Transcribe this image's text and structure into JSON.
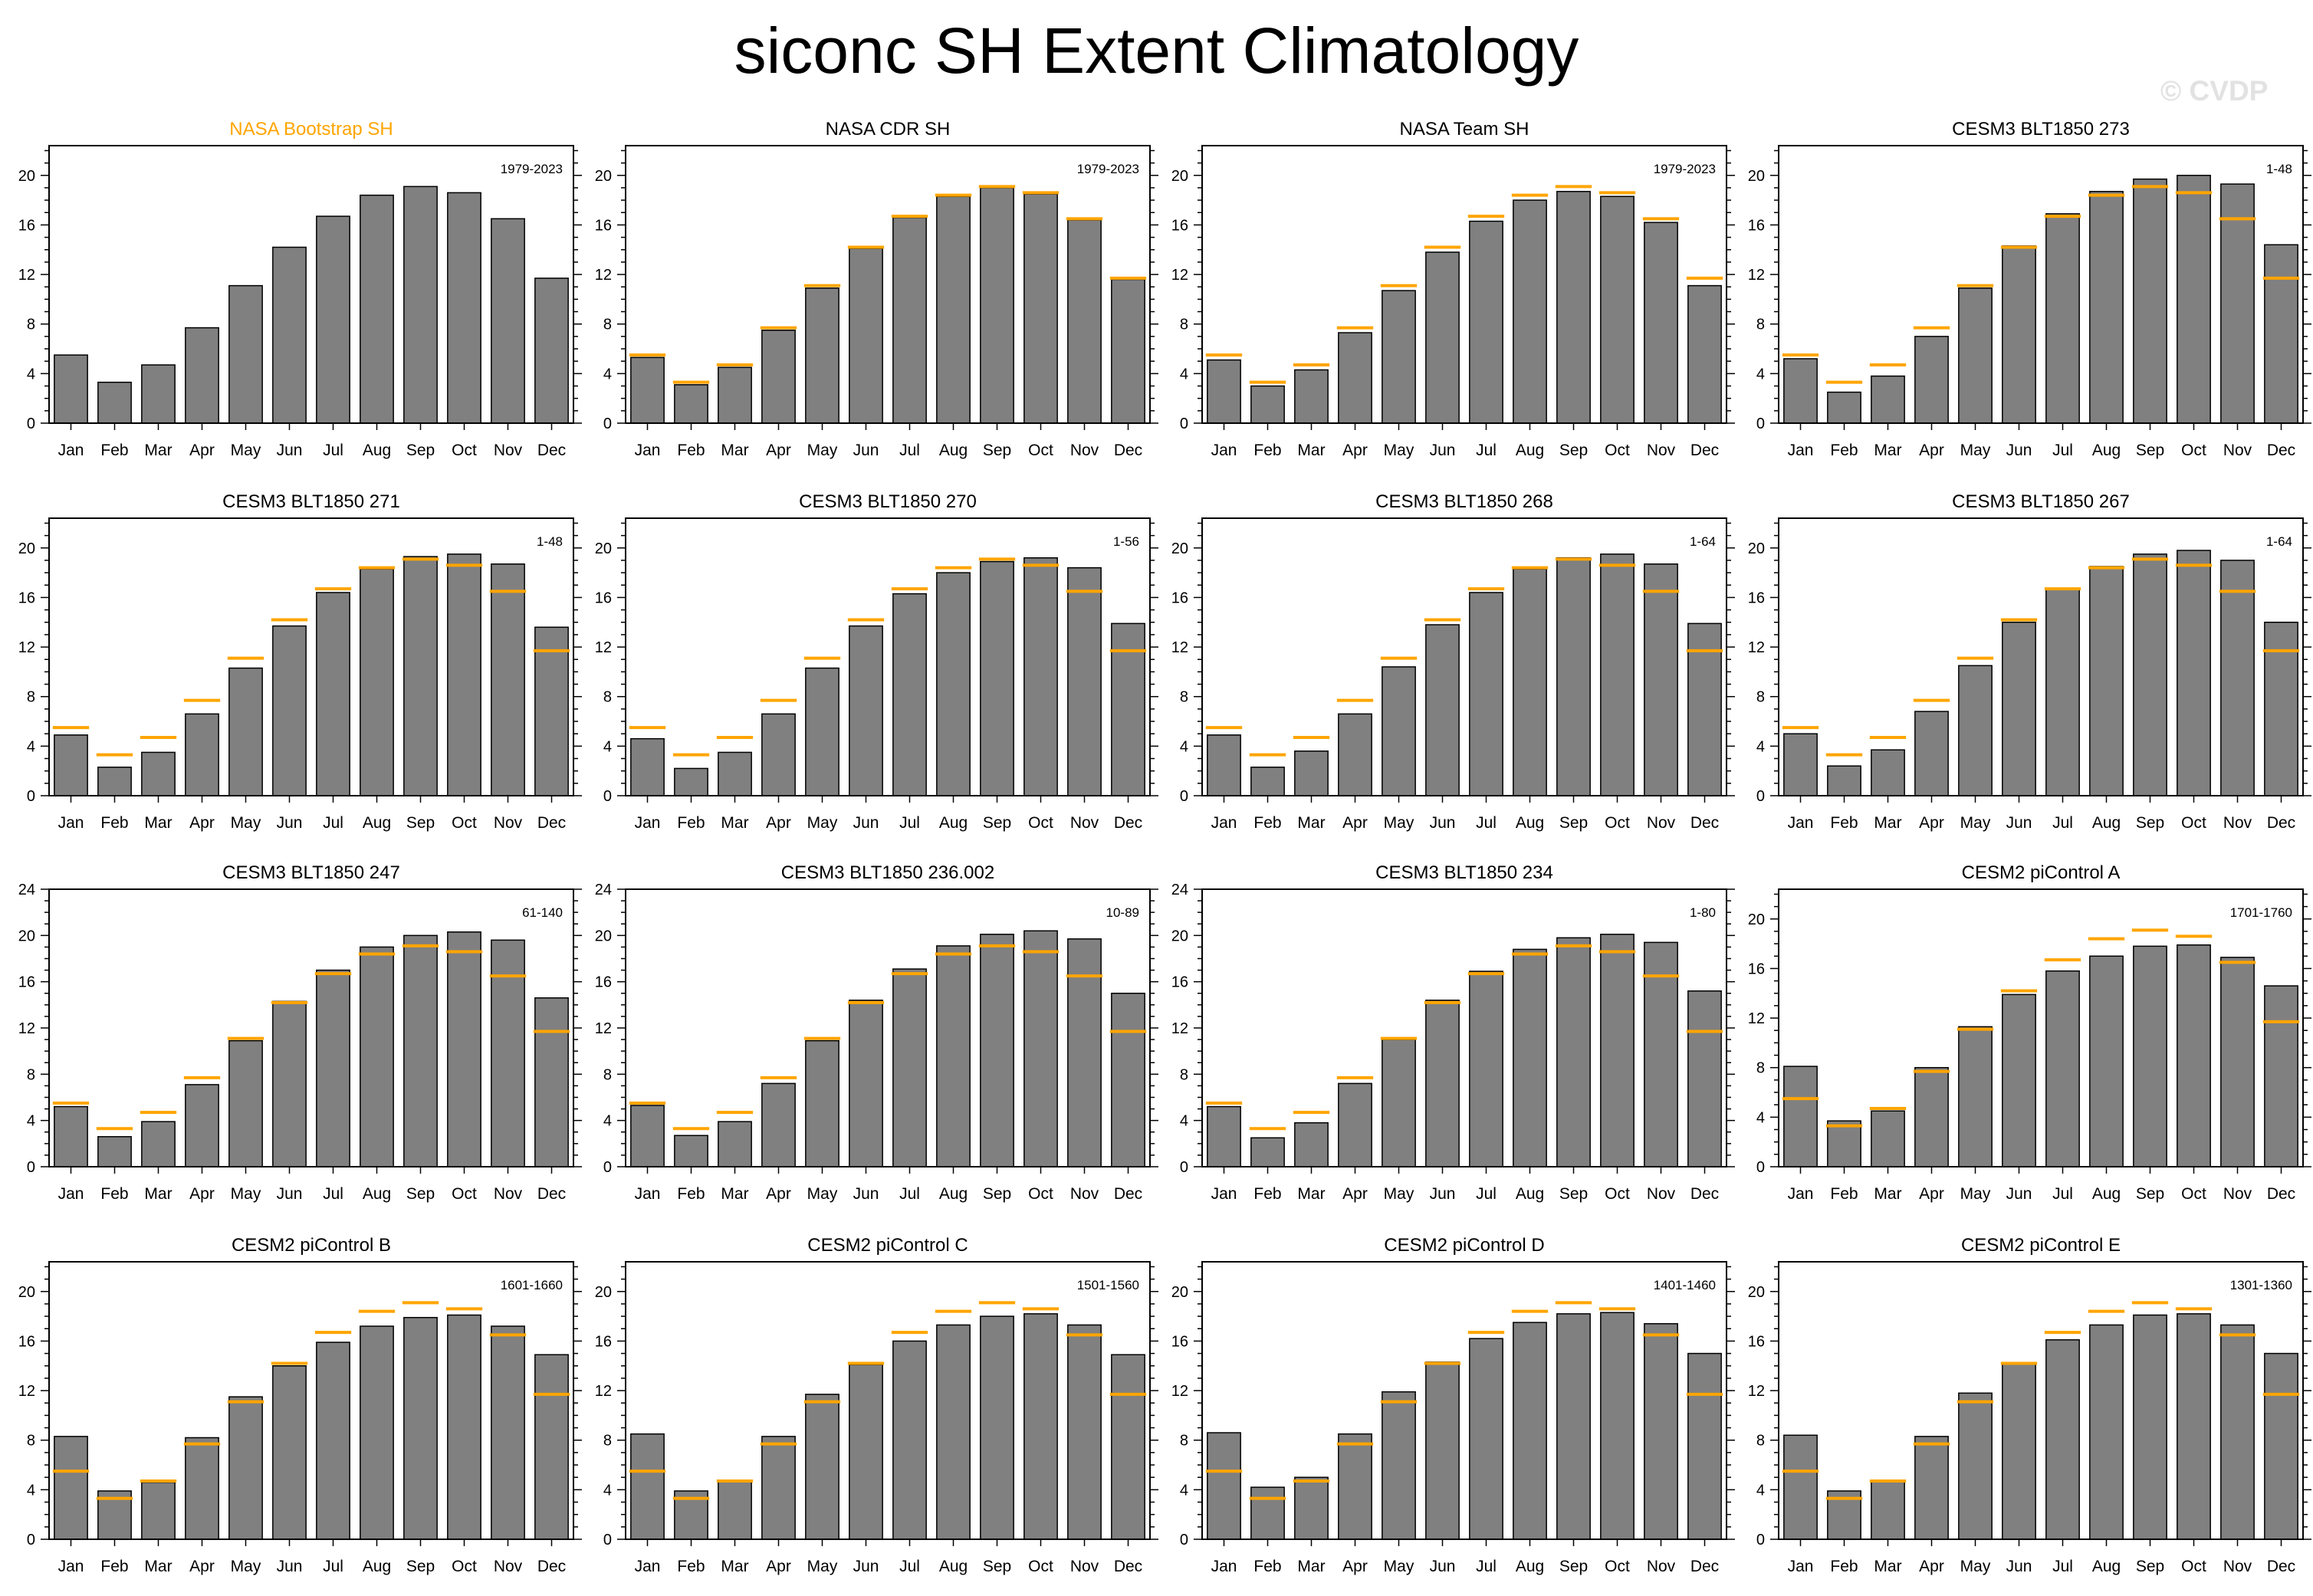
{
  "title": "siconc SH Extent Climatology",
  "watermark": "© CVDP",
  "colors": {
    "bar_fill": "#808080",
    "bar_edge": "#000000",
    "obs_line": "#ffa500",
    "highlight_title": "#ffa500"
  },
  "chart_data": [
    {
      "type": "bar",
      "title": "NASA Bootstrap SH",
      "title_highlight": true,
      "period": "1979-2023",
      "categories": [
        "Jan",
        "Feb",
        "Mar",
        "Apr",
        "May",
        "Jun",
        "Jul",
        "Aug",
        "Sep",
        "Oct",
        "Nov",
        "Dec"
      ],
      "values": [
        5.5,
        3.3,
        4.7,
        7.7,
        11.1,
        14.2,
        16.7,
        18.4,
        19.1,
        18.6,
        16.5,
        11.7
      ],
      "ref_values": [],
      "ylim": [
        0,
        22.4
      ],
      "yticks": [
        0,
        4,
        8,
        12,
        16,
        20
      ]
    },
    {
      "type": "bar",
      "title": "NASA CDR SH",
      "period": "1979-2023",
      "categories": [
        "Jan",
        "Feb",
        "Mar",
        "Apr",
        "May",
        "Jun",
        "Jul",
        "Aug",
        "Sep",
        "Oct",
        "Nov",
        "Dec"
      ],
      "values": [
        5.3,
        3.1,
        4.5,
        7.5,
        10.9,
        14.1,
        16.6,
        18.3,
        19.0,
        18.5,
        16.4,
        11.6
      ],
      "ref_values": [
        5.5,
        3.3,
        4.7,
        7.7,
        11.1,
        14.2,
        16.7,
        18.4,
        19.1,
        18.6,
        16.5,
        11.7
      ],
      "ylim": [
        0,
        22.4
      ],
      "yticks": [
        0,
        4,
        8,
        12,
        16,
        20
      ]
    },
    {
      "type": "bar",
      "title": "NASA Team SH",
      "period": "1979-2023",
      "categories": [
        "Jan",
        "Feb",
        "Mar",
        "Apr",
        "May",
        "Jun",
        "Jul",
        "Aug",
        "Sep",
        "Oct",
        "Nov",
        "Dec"
      ],
      "values": [
        5.1,
        3.0,
        4.3,
        7.3,
        10.7,
        13.8,
        16.3,
        18.0,
        18.7,
        18.3,
        16.2,
        11.1
      ],
      "ref_values": [
        5.5,
        3.3,
        4.7,
        7.7,
        11.1,
        14.2,
        16.7,
        18.4,
        19.1,
        18.6,
        16.5,
        11.7
      ],
      "ylim": [
        0,
        22.4
      ],
      "yticks": [
        0,
        4,
        8,
        12,
        16,
        20
      ]
    },
    {
      "type": "bar",
      "title": "CESM3 BLT1850 273",
      "period": "1-48",
      "categories": [
        "Jan",
        "Feb",
        "Mar",
        "Apr",
        "May",
        "Jun",
        "Jul",
        "Aug",
        "Sep",
        "Oct",
        "Nov",
        "Dec"
      ],
      "values": [
        5.2,
        2.5,
        3.8,
        7.0,
        10.9,
        14.3,
        16.9,
        18.7,
        19.7,
        20.0,
        19.3,
        14.4
      ],
      "ref_values": [
        5.5,
        3.3,
        4.7,
        7.7,
        11.1,
        14.2,
        16.7,
        18.4,
        19.1,
        18.6,
        16.5,
        11.7
      ],
      "ylim": [
        0,
        22.4
      ],
      "yticks": [
        0,
        4,
        8,
        12,
        16,
        20
      ]
    },
    {
      "type": "bar",
      "title": "CESM3 BLT1850 271",
      "period": "1-48",
      "categories": [
        "Jan",
        "Feb",
        "Mar",
        "Apr",
        "May",
        "Jun",
        "Jul",
        "Aug",
        "Sep",
        "Oct",
        "Nov",
        "Dec"
      ],
      "values": [
        4.9,
        2.3,
        3.5,
        6.6,
        10.3,
        13.7,
        16.4,
        18.3,
        19.3,
        19.5,
        18.7,
        13.6
      ],
      "ref_values": [
        5.5,
        3.3,
        4.7,
        7.7,
        11.1,
        14.2,
        16.7,
        18.4,
        19.1,
        18.6,
        16.5,
        11.7
      ],
      "ylim": [
        0,
        22.4
      ],
      "yticks": [
        0,
        4,
        8,
        12,
        16,
        20
      ]
    },
    {
      "type": "bar",
      "title": "CESM3 BLT1850 270",
      "period": "1-56",
      "categories": [
        "Jan",
        "Feb",
        "Mar",
        "Apr",
        "May",
        "Jun",
        "Jul",
        "Aug",
        "Sep",
        "Oct",
        "Nov",
        "Dec"
      ],
      "values": [
        4.6,
        2.2,
        3.5,
        6.6,
        10.3,
        13.7,
        16.3,
        18.0,
        18.9,
        19.2,
        18.4,
        13.9
      ],
      "ref_values": [
        5.5,
        3.3,
        4.7,
        7.7,
        11.1,
        14.2,
        16.7,
        18.4,
        19.1,
        18.6,
        16.5,
        11.7
      ],
      "ylim": [
        0,
        22.4
      ],
      "yticks": [
        0,
        4,
        8,
        12,
        16,
        20
      ]
    },
    {
      "type": "bar",
      "title": "CESM3 BLT1850 268",
      "period": "1-64",
      "categories": [
        "Jan",
        "Feb",
        "Mar",
        "Apr",
        "May",
        "Jun",
        "Jul",
        "Aug",
        "Sep",
        "Oct",
        "Nov",
        "Dec"
      ],
      "values": [
        4.9,
        2.3,
        3.6,
        6.6,
        10.4,
        13.8,
        16.4,
        18.3,
        19.2,
        19.5,
        18.7,
        13.9
      ],
      "ref_values": [
        5.5,
        3.3,
        4.7,
        7.7,
        11.1,
        14.2,
        16.7,
        18.4,
        19.1,
        18.6,
        16.5,
        11.7
      ],
      "ylim": [
        0,
        22.4
      ],
      "yticks": [
        0,
        4,
        8,
        12,
        16,
        20
      ]
    },
    {
      "type": "bar",
      "title": "CESM3 BLT1850 267",
      "period": "1-64",
      "categories": [
        "Jan",
        "Feb",
        "Mar",
        "Apr",
        "May",
        "Jun",
        "Jul",
        "Aug",
        "Sep",
        "Oct",
        "Nov",
        "Dec"
      ],
      "values": [
        5.0,
        2.4,
        3.7,
        6.8,
        10.5,
        14.0,
        16.7,
        18.5,
        19.5,
        19.8,
        19.0,
        14.0
      ],
      "ref_values": [
        5.5,
        3.3,
        4.7,
        7.7,
        11.1,
        14.2,
        16.7,
        18.4,
        19.1,
        18.6,
        16.5,
        11.7
      ],
      "ylim": [
        0,
        22.4
      ],
      "yticks": [
        0,
        4,
        8,
        12,
        16,
        20
      ]
    },
    {
      "type": "bar",
      "title": "CESM3 BLT1850 247",
      "period": "61-140",
      "categories": [
        "Jan",
        "Feb",
        "Mar",
        "Apr",
        "May",
        "Jun",
        "Jul",
        "Aug",
        "Sep",
        "Oct",
        "Nov",
        "Dec"
      ],
      "values": [
        5.2,
        2.6,
        3.9,
        7.1,
        10.9,
        14.3,
        17.0,
        19.0,
        20.0,
        20.3,
        19.6,
        14.6
      ],
      "ref_values": [
        5.5,
        3.3,
        4.7,
        7.7,
        11.1,
        14.2,
        16.7,
        18.4,
        19.1,
        18.6,
        16.5,
        11.7
      ],
      "ylim": [
        0,
        24
      ],
      "yticks": [
        0,
        4,
        8,
        12,
        16,
        20,
        24
      ]
    },
    {
      "type": "bar",
      "title": "CESM3 BLT1850 236.002",
      "period": "10-89",
      "categories": [
        "Jan",
        "Feb",
        "Mar",
        "Apr",
        "May",
        "Jun",
        "Jul",
        "Aug",
        "Sep",
        "Oct",
        "Nov",
        "Dec"
      ],
      "values": [
        5.3,
        2.7,
        3.9,
        7.2,
        10.9,
        14.4,
        17.1,
        19.1,
        20.1,
        20.4,
        19.7,
        15.0
      ],
      "ref_values": [
        5.5,
        3.3,
        4.7,
        7.7,
        11.1,
        14.2,
        16.7,
        18.4,
        19.1,
        18.6,
        16.5,
        11.7
      ],
      "ylim": [
        0,
        24
      ],
      "yticks": [
        0,
        4,
        8,
        12,
        16,
        20,
        24
      ]
    },
    {
      "type": "bar",
      "title": "CESM3 BLT1850 234",
      "period": "1-80",
      "categories": [
        "Jan",
        "Feb",
        "Mar",
        "Apr",
        "May",
        "Jun",
        "Jul",
        "Aug",
        "Sep",
        "Oct",
        "Nov",
        "Dec"
      ],
      "values": [
        5.2,
        2.5,
        3.8,
        7.2,
        11.0,
        14.4,
        16.9,
        18.8,
        19.8,
        20.1,
        19.4,
        15.2
      ],
      "ref_values": [
        5.5,
        3.3,
        4.7,
        7.7,
        11.1,
        14.2,
        16.7,
        18.4,
        19.1,
        18.6,
        16.5,
        11.7
      ],
      "ylim": [
        0,
        24
      ],
      "yticks": [
        0,
        4,
        8,
        12,
        16,
        20,
        24
      ]
    },
    {
      "type": "bar",
      "title": "CESM2 piControl A",
      "period": "1701-1760",
      "categories": [
        "Jan",
        "Feb",
        "Mar",
        "Apr",
        "May",
        "Jun",
        "Jul",
        "Aug",
        "Sep",
        "Oct",
        "Nov",
        "Dec"
      ],
      "values": [
        8.1,
        3.7,
        4.5,
        8.0,
        11.3,
        13.9,
        15.8,
        17.0,
        17.8,
        17.9,
        16.9,
        14.6
      ],
      "ref_values": [
        5.5,
        3.3,
        4.7,
        7.7,
        11.1,
        14.2,
        16.7,
        18.4,
        19.1,
        18.6,
        16.5,
        11.7
      ],
      "ylim": [
        0,
        22.4
      ],
      "yticks": [
        0,
        4,
        8,
        12,
        16,
        20
      ]
    },
    {
      "type": "bar",
      "title": "CESM2 piControl B",
      "period": "1601-1660",
      "categories": [
        "Jan",
        "Feb",
        "Mar",
        "Apr",
        "May",
        "Jun",
        "Jul",
        "Aug",
        "Sep",
        "Oct",
        "Nov",
        "Dec"
      ],
      "values": [
        8.3,
        3.9,
        4.6,
        8.2,
        11.5,
        14.0,
        15.9,
        17.2,
        17.9,
        18.1,
        17.2,
        14.9
      ],
      "ref_values": [
        5.5,
        3.3,
        4.7,
        7.7,
        11.1,
        14.2,
        16.7,
        18.4,
        19.1,
        18.6,
        16.5,
        11.7
      ],
      "ylim": [
        0,
        22.4
      ],
      "yticks": [
        0,
        4,
        8,
        12,
        16,
        20
      ]
    },
    {
      "type": "bar",
      "title": "CESM2 piControl C",
      "period": "1501-1560",
      "categories": [
        "Jan",
        "Feb",
        "Mar",
        "Apr",
        "May",
        "Jun",
        "Jul",
        "Aug",
        "Sep",
        "Oct",
        "Nov",
        "Dec"
      ],
      "values": [
        8.5,
        3.9,
        4.7,
        8.3,
        11.7,
        14.1,
        16.0,
        17.3,
        18.0,
        18.2,
        17.3,
        14.9
      ],
      "ref_values": [
        5.5,
        3.3,
        4.7,
        7.7,
        11.1,
        14.2,
        16.7,
        18.4,
        19.1,
        18.6,
        16.5,
        11.7
      ],
      "ylim": [
        0,
        22.4
      ],
      "yticks": [
        0,
        4,
        8,
        12,
        16,
        20
      ]
    },
    {
      "type": "bar",
      "title": "CESM2 piControl D",
      "period": "1401-1460",
      "categories": [
        "Jan",
        "Feb",
        "Mar",
        "Apr",
        "May",
        "Jun",
        "Jul",
        "Aug",
        "Sep",
        "Oct",
        "Nov",
        "Dec"
      ],
      "values": [
        8.6,
        4.2,
        5.0,
        8.5,
        11.9,
        14.3,
        16.2,
        17.5,
        18.2,
        18.3,
        17.4,
        15.0
      ],
      "ref_values": [
        5.5,
        3.3,
        4.7,
        7.7,
        11.1,
        14.2,
        16.7,
        18.4,
        19.1,
        18.6,
        16.5,
        11.7
      ],
      "ylim": [
        0,
        22.4
      ],
      "yticks": [
        0,
        4,
        8,
        12,
        16,
        20
      ]
    },
    {
      "type": "bar",
      "title": "CESM2 piControl E",
      "period": "1301-1360",
      "categories": [
        "Jan",
        "Feb",
        "Mar",
        "Apr",
        "May",
        "Jun",
        "Jul",
        "Aug",
        "Sep",
        "Oct",
        "Nov",
        "Dec"
      ],
      "values": [
        8.4,
        3.9,
        4.7,
        8.3,
        11.8,
        14.2,
        16.1,
        17.3,
        18.1,
        18.2,
        17.3,
        15.0
      ],
      "ref_values": [
        5.5,
        3.3,
        4.7,
        7.7,
        11.1,
        14.2,
        16.7,
        18.4,
        19.1,
        18.6,
        16.5,
        11.7
      ],
      "ylim": [
        0,
        22.4
      ],
      "yticks": [
        0,
        4,
        8,
        12,
        16,
        20
      ]
    }
  ]
}
